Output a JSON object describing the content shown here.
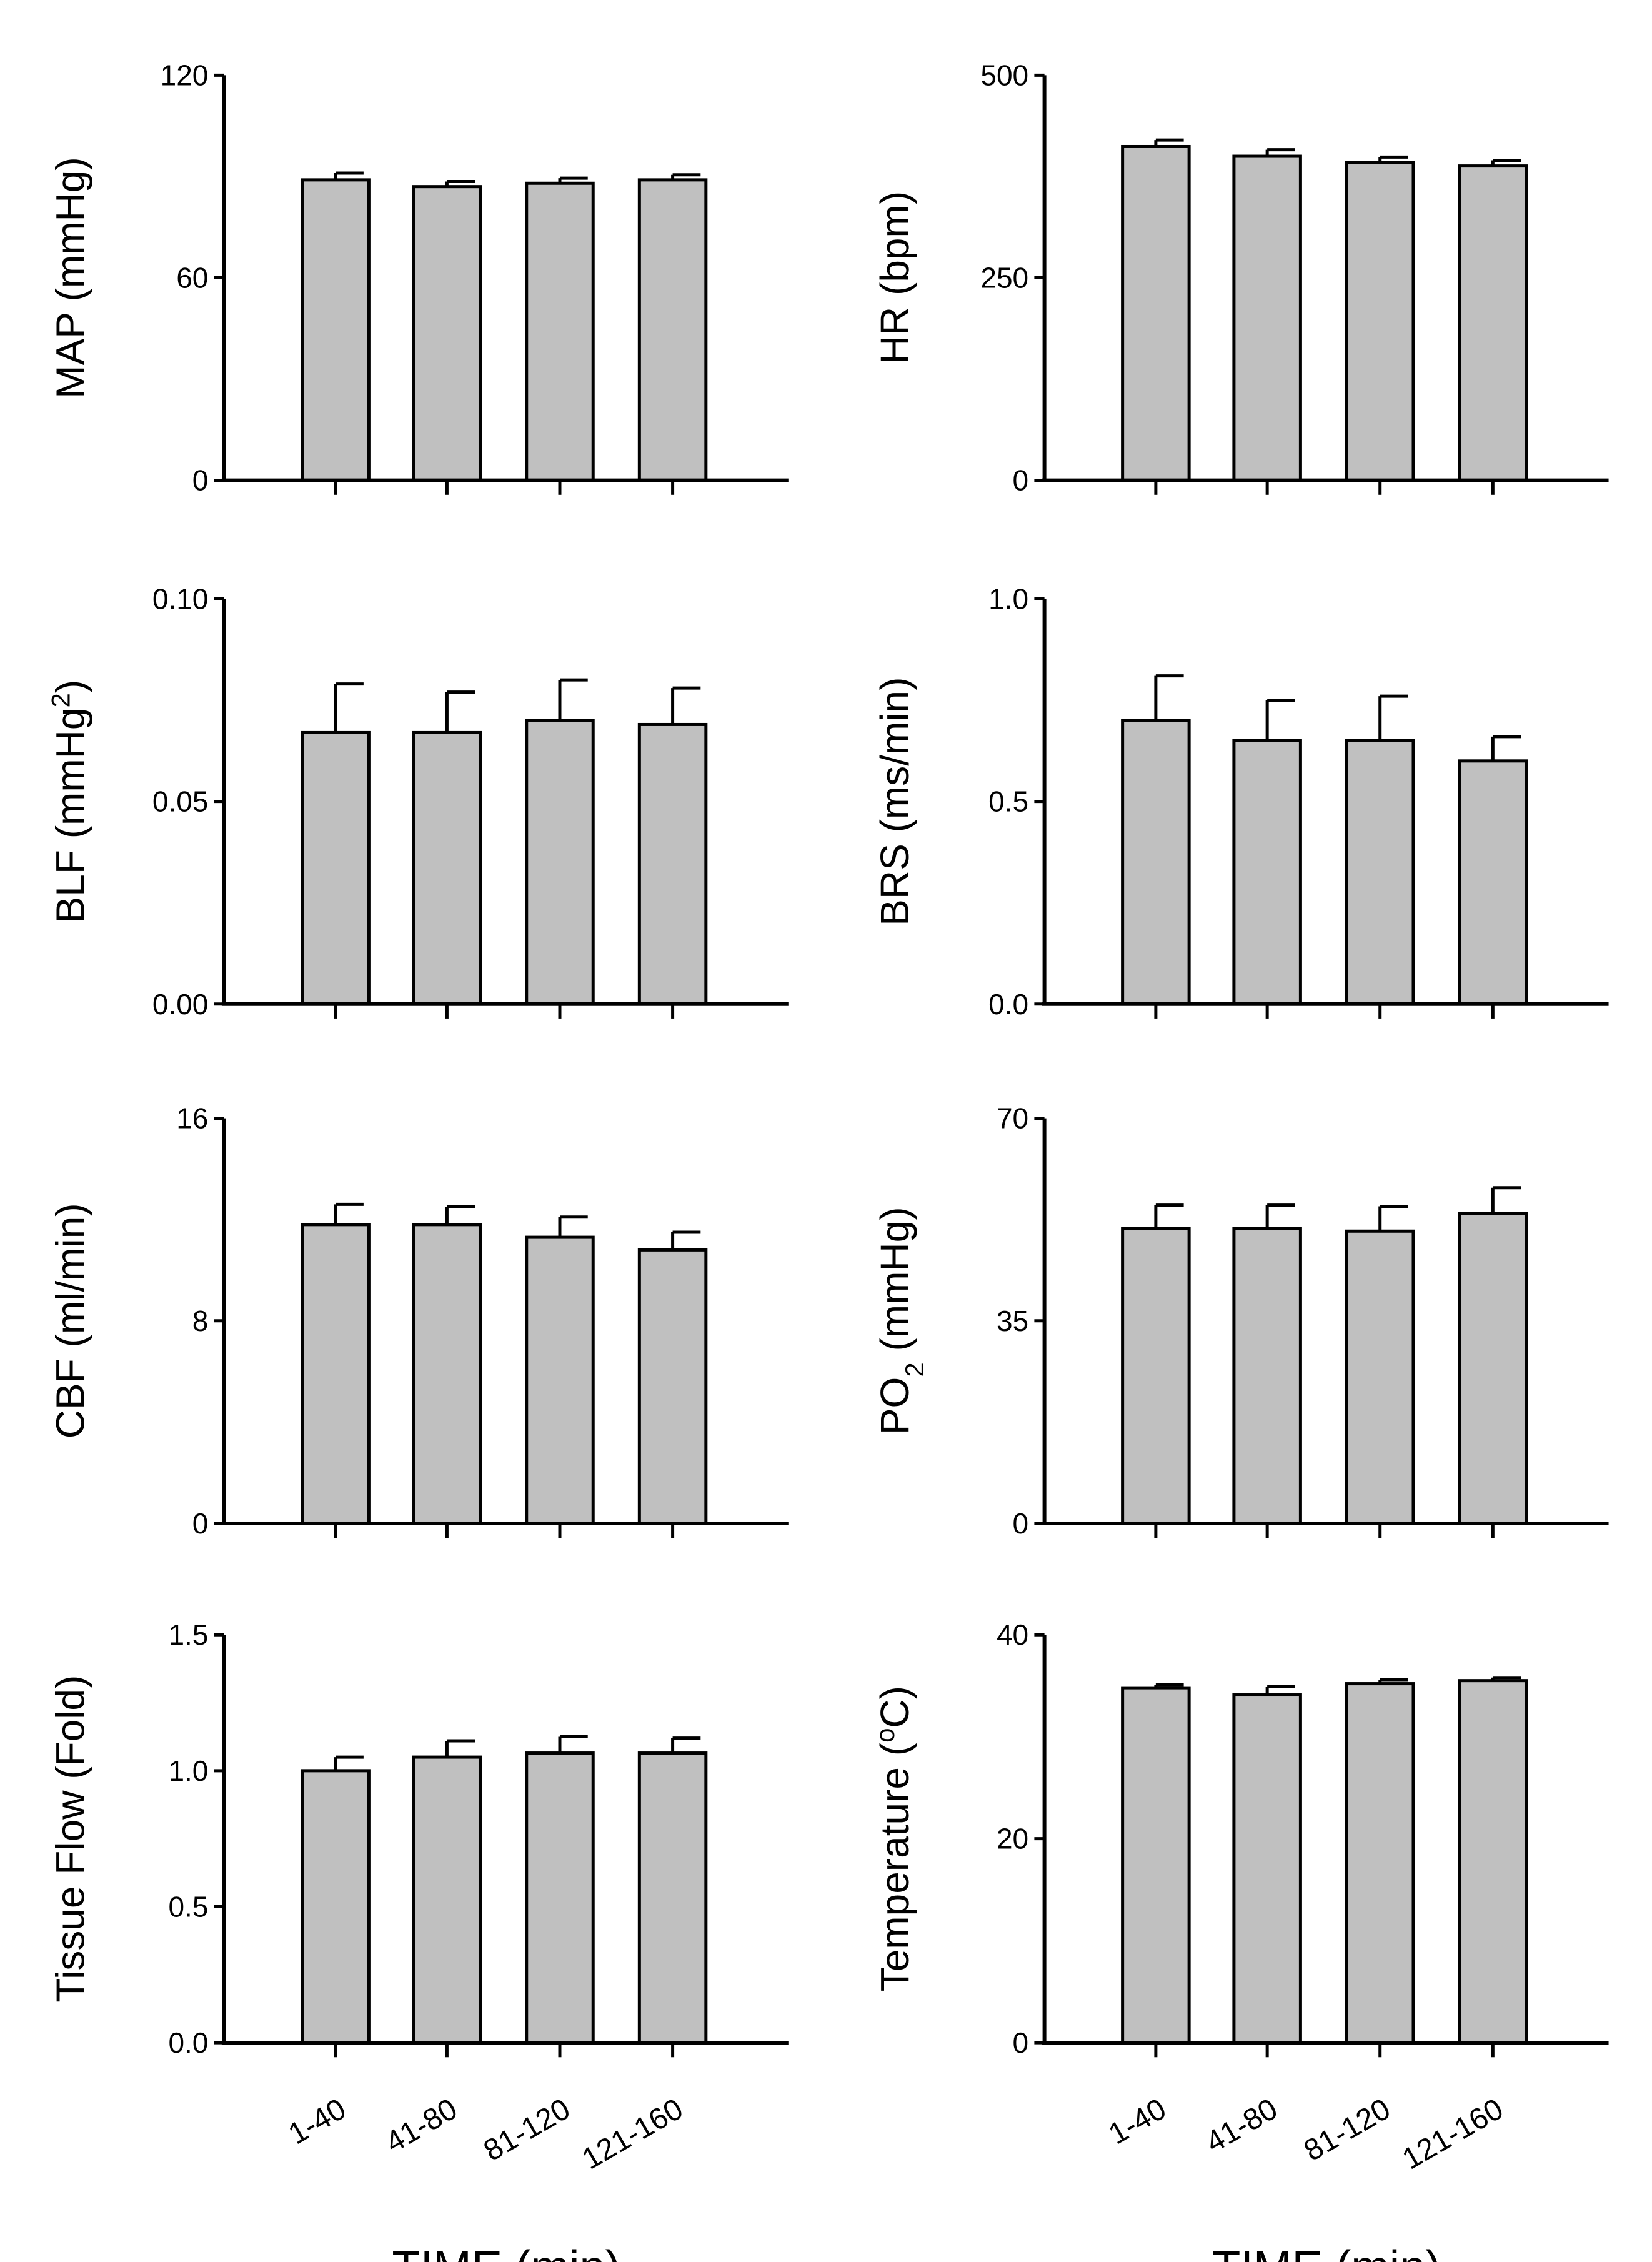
{
  "chart_data": [
    {
      "type": "bar",
      "ylabel": "MAP (mmHg)",
      "ylabel_parts": [
        {
          "text": "MAP (mmHg)",
          "shift": ""
        }
      ],
      "categories": [
        "1-40",
        "41-80",
        "81-120",
        "121-160"
      ],
      "values": [
        89,
        87,
        88,
        89
      ],
      "errors": [
        2,
        1.5,
        1.5,
        1.5
      ],
      "ylim": [
        0,
        120
      ],
      "yticks": [
        "0",
        "60",
        "120"
      ],
      "ytick_values": [
        0,
        60,
        120
      ],
      "xlabel": ""
    },
    {
      "type": "bar",
      "ylabel": "HR (bpm)",
      "ylabel_parts": [
        {
          "text": "HR (bpm)",
          "shift": ""
        }
      ],
      "categories": [
        "1-40",
        "41-80",
        "81-120",
        "121-160"
      ],
      "values": [
        412,
        400,
        392,
        388
      ],
      "errors": [
        8,
        8,
        7,
        7
      ],
      "ylim": [
        0,
        500
      ],
      "yticks": [
        "0",
        "250",
        "500"
      ],
      "ytick_values": [
        0,
        250,
        500
      ],
      "xlabel": ""
    },
    {
      "type": "bar",
      "ylabel": "BLF (mmHg2)",
      "ylabel_parts": [
        {
          "text": "BLF (mmHg",
          "shift": ""
        },
        {
          "text": "2",
          "shift": "super"
        },
        {
          "text": ")",
          "shift": ""
        }
      ],
      "categories": [
        "1-40",
        "41-80",
        "81-120",
        "121-160"
      ],
      "values": [
        0.067,
        0.067,
        0.07,
        0.069
      ],
      "errors": [
        0.012,
        0.01,
        0.01,
        0.009
      ],
      "ylim": [
        0,
        0.1
      ],
      "yticks": [
        "0.00",
        "0.05",
        "0.10"
      ],
      "ytick_values": [
        0,
        0.05,
        0.1
      ],
      "xlabel": ""
    },
    {
      "type": "bar",
      "ylabel": "BRS (ms/min)",
      "ylabel_parts": [
        {
          "text": "BRS (ms/min)",
          "shift": ""
        }
      ],
      "categories": [
        "1-40",
        "41-80",
        "81-120",
        "121-160"
      ],
      "values": [
        0.7,
        0.65,
        0.65,
        0.6
      ],
      "errors": [
        0.11,
        0.1,
        0.11,
        0.06
      ],
      "ylim": [
        0,
        1.0
      ],
      "yticks": [
        "0.0",
        "0.5",
        "1.0"
      ],
      "ytick_values": [
        0,
        0.5,
        1.0
      ],
      "xlabel": ""
    },
    {
      "type": "bar",
      "ylabel": "CBF (ml/min)",
      "ylabel_parts": [
        {
          "text": "CBF (ml/min)",
          "shift": ""
        }
      ],
      "categories": [
        "1-40",
        "41-80",
        "81-120",
        "121-160"
      ],
      "values": [
        11.8,
        11.8,
        11.3,
        10.8
      ],
      "errors": [
        0.8,
        0.7,
        0.8,
        0.7
      ],
      "ylim": [
        0,
        16
      ],
      "yticks": [
        "0",
        "8",
        "16"
      ],
      "ytick_values": [
        0,
        8,
        16
      ],
      "xlabel": ""
    },
    {
      "type": "bar",
      "ylabel": "PO2 (mmHg)",
      "ylabel_parts": [
        {
          "text": "PO",
          "shift": ""
        },
        {
          "text": "2",
          "shift": "sub"
        },
        {
          "text": " (mmHg)",
          "shift": ""
        }
      ],
      "categories": [
        "1-40",
        "41-80",
        "81-120",
        "121-160"
      ],
      "values": [
        51,
        51,
        50.5,
        53.5
      ],
      "errors": [
        4,
        4,
        4.3,
        4.5
      ],
      "ylim": [
        0,
        70
      ],
      "yticks": [
        "0",
        "35",
        "70"
      ],
      "ytick_values": [
        0,
        35,
        70
      ],
      "xlabel": ""
    },
    {
      "type": "bar",
      "ylabel": "Tissue Flow (Fold)",
      "ylabel_parts": [
        {
          "text": "Tissue Flow (Fold)",
          "shift": ""
        }
      ],
      "categories": [
        "1-40",
        "41-80",
        "81-120",
        "121-160"
      ],
      "values": [
        1.0,
        1.05,
        1.065,
        1.065
      ],
      "errors": [
        0.05,
        0.06,
        0.06,
        0.055
      ],
      "ylim": [
        0,
        1.5
      ],
      "yticks": [
        "0.0",
        "0.5",
        "1.0",
        "1.5"
      ],
      "ytick_values": [
        0,
        0.5,
        1.0,
        1.5
      ],
      "xlabel": "TIME (min)"
    },
    {
      "type": "bar",
      "ylabel": "Temperature (oC)",
      "ylabel_parts": [
        {
          "text": "Temperature (",
          "shift": ""
        },
        {
          "text": "o",
          "shift": "super"
        },
        {
          "text": "C)",
          "shift": ""
        }
      ],
      "categories": [
        "1-40",
        "41-80",
        "81-120",
        "121-160"
      ],
      "values": [
        34.8,
        34.1,
        35.2,
        35.5
      ],
      "errors": [
        0.3,
        0.8,
        0.4,
        0.3
      ],
      "ylim": [
        0,
        40
      ],
      "yticks": [
        "0",
        "20",
        "40"
      ],
      "ytick_values": [
        0,
        20,
        40
      ],
      "xlabel": "TIME (min)"
    }
  ]
}
